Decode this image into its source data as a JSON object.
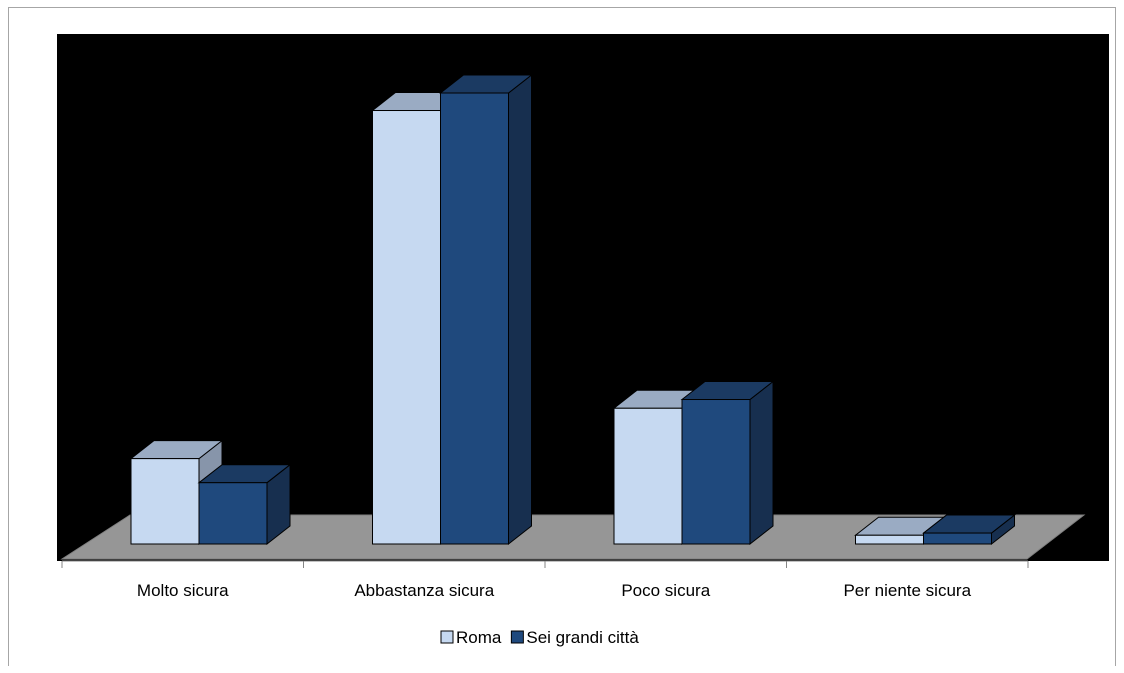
{
  "chart_data": {
    "type": "bar",
    "categories": [
      "Molto sicura",
      "Abbastanza sicura",
      "Poco sicura",
      "Per niente sicura"
    ],
    "series": [
      {
        "name": "Roma",
        "values": [
          19.5,
          99,
          31,
          2
        ],
        "color": "#c6d9f1",
        "top_color": "#9aabc3",
        "side_color": "#8795aa"
      },
      {
        "name": "Sei grandi città",
        "values": [
          14,
          103,
          33,
          2.5
        ],
        "color": "#1f497d",
        "top_color": "#1b3a62",
        "side_color": "#172f4f"
      }
    ],
    "ylim": [
      0,
      110
    ],
    "grid": false,
    "legend": "bottom",
    "background_color": "#000000",
    "floor_color": "#969696"
  }
}
